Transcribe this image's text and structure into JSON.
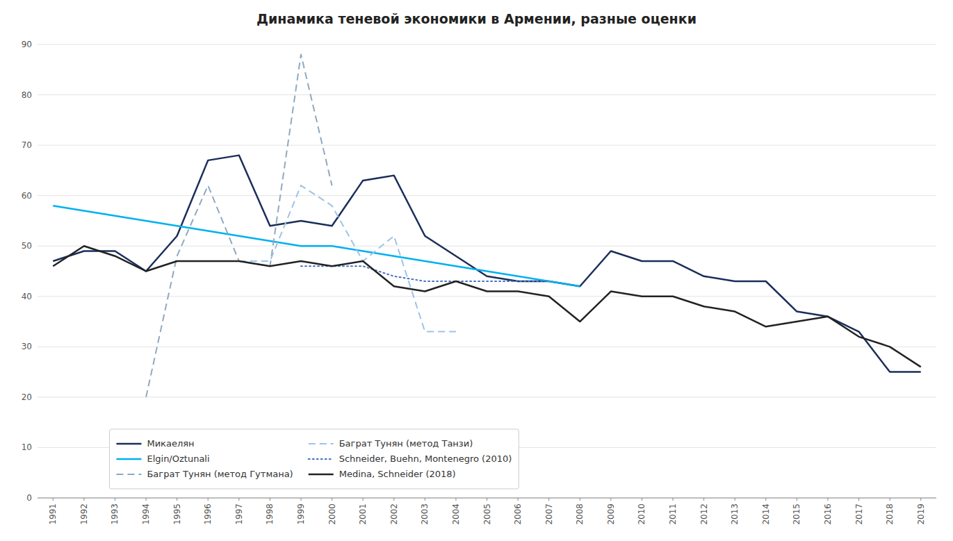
{
  "chart_data": {
    "type": "line",
    "title": "Динамика теневой экономики в Армении, разные оценки",
    "x": [
      1991,
      1992,
      1993,
      1994,
      1995,
      1996,
      1997,
      1998,
      1999,
      2000,
      2001,
      2002,
      2003,
      2004,
      2005,
      2006,
      2007,
      2008,
      2009,
      2010,
      2011,
      2012,
      2013,
      2014,
      2015,
      2016,
      2017,
      2018,
      2019
    ],
    "xlim": [
      1990.5,
      2019.5
    ],
    "xticks": [
      1991,
      1992,
      1993,
      1994,
      1995,
      1996,
      1997,
      1998,
      1999,
      2000,
      2001,
      2002,
      2003,
      2004,
      2005,
      2006,
      2007,
      2008,
      2009,
      2010,
      2011,
      2012,
      2013,
      2014,
      2015,
      2016,
      2017,
      2018,
      2019
    ],
    "ylim": [
      0,
      90
    ],
    "yticks": [
      0,
      10,
      20,
      30,
      40,
      50,
      60,
      70,
      80,
      90
    ],
    "grid": true,
    "legend": "lower left",
    "series": [
      {
        "name": "Микаелян",
        "color": "#1a2e5a",
        "line_style": "solid",
        "values": [
          47,
          49,
          49,
          45,
          52,
          67,
          68,
          54,
          55,
          54,
          63,
          64,
          52,
          48,
          44,
          43,
          43,
          42,
          49,
          47,
          47,
          44,
          43,
          43,
          37,
          36,
          33,
          25,
          25
        ]
      },
      {
        "name": "Elgin/Oztunali",
        "color": "#00b0f0",
        "line_style": "solid",
        "values": [
          58,
          57,
          56,
          55,
          54,
          53,
          52,
          51,
          50,
          50,
          49,
          48,
          47,
          46,
          45,
          44,
          43,
          42,
          null,
          null,
          null,
          null,
          null,
          null,
          null,
          null,
          null,
          null,
          null
        ]
      },
      {
        "name": "Баграт Тунян (метод Гутмана)",
        "color": "#8ea9c1",
        "line_style": "dashed",
        "values": [
          null,
          null,
          null,
          20,
          48,
          62,
          47,
          46,
          88,
          62,
          null,
          null,
          null,
          null,
          null,
          null,
          null,
          null,
          null,
          null,
          null,
          null,
          null,
          null,
          null,
          null,
          null,
          null,
          null
        ]
      },
      {
        "name": "Баграт Тунян (метод Танзи)",
        "color": "#9dc3e6",
        "line_style": "dashed",
        "values": [
          null,
          null,
          null,
          null,
          null,
          null,
          47,
          47,
          62,
          58,
          47,
          52,
          33,
          33,
          null,
          null,
          null,
          null,
          null,
          null,
          null,
          null,
          null,
          null,
          null,
          null,
          null,
          null,
          null
        ]
      },
      {
        "name": "Schneider, Buehn, Montenegro (2010)",
        "color": "#4472c4",
        "line_style": "dotted",
        "values": [
          null,
          null,
          null,
          null,
          null,
          null,
          null,
          null,
          46,
          46,
          46,
          44,
          43,
          43,
          43,
          43,
          43,
          null,
          null,
          null,
          null,
          null,
          null,
          null,
          null,
          null,
          null,
          null,
          null
        ]
      },
      {
        "name": "Medina, Schneider (2018)",
        "color": "#222222",
        "line_style": "solid",
        "values": [
          46,
          50,
          48,
          45,
          47,
          47,
          47,
          46,
          47,
          46,
          47,
          42,
          41,
          43,
          41,
          41,
          40,
          35,
          41,
          40,
          40,
          38,
          37,
          34,
          35,
          36,
          32,
          30,
          26
        ]
      }
    ]
  }
}
